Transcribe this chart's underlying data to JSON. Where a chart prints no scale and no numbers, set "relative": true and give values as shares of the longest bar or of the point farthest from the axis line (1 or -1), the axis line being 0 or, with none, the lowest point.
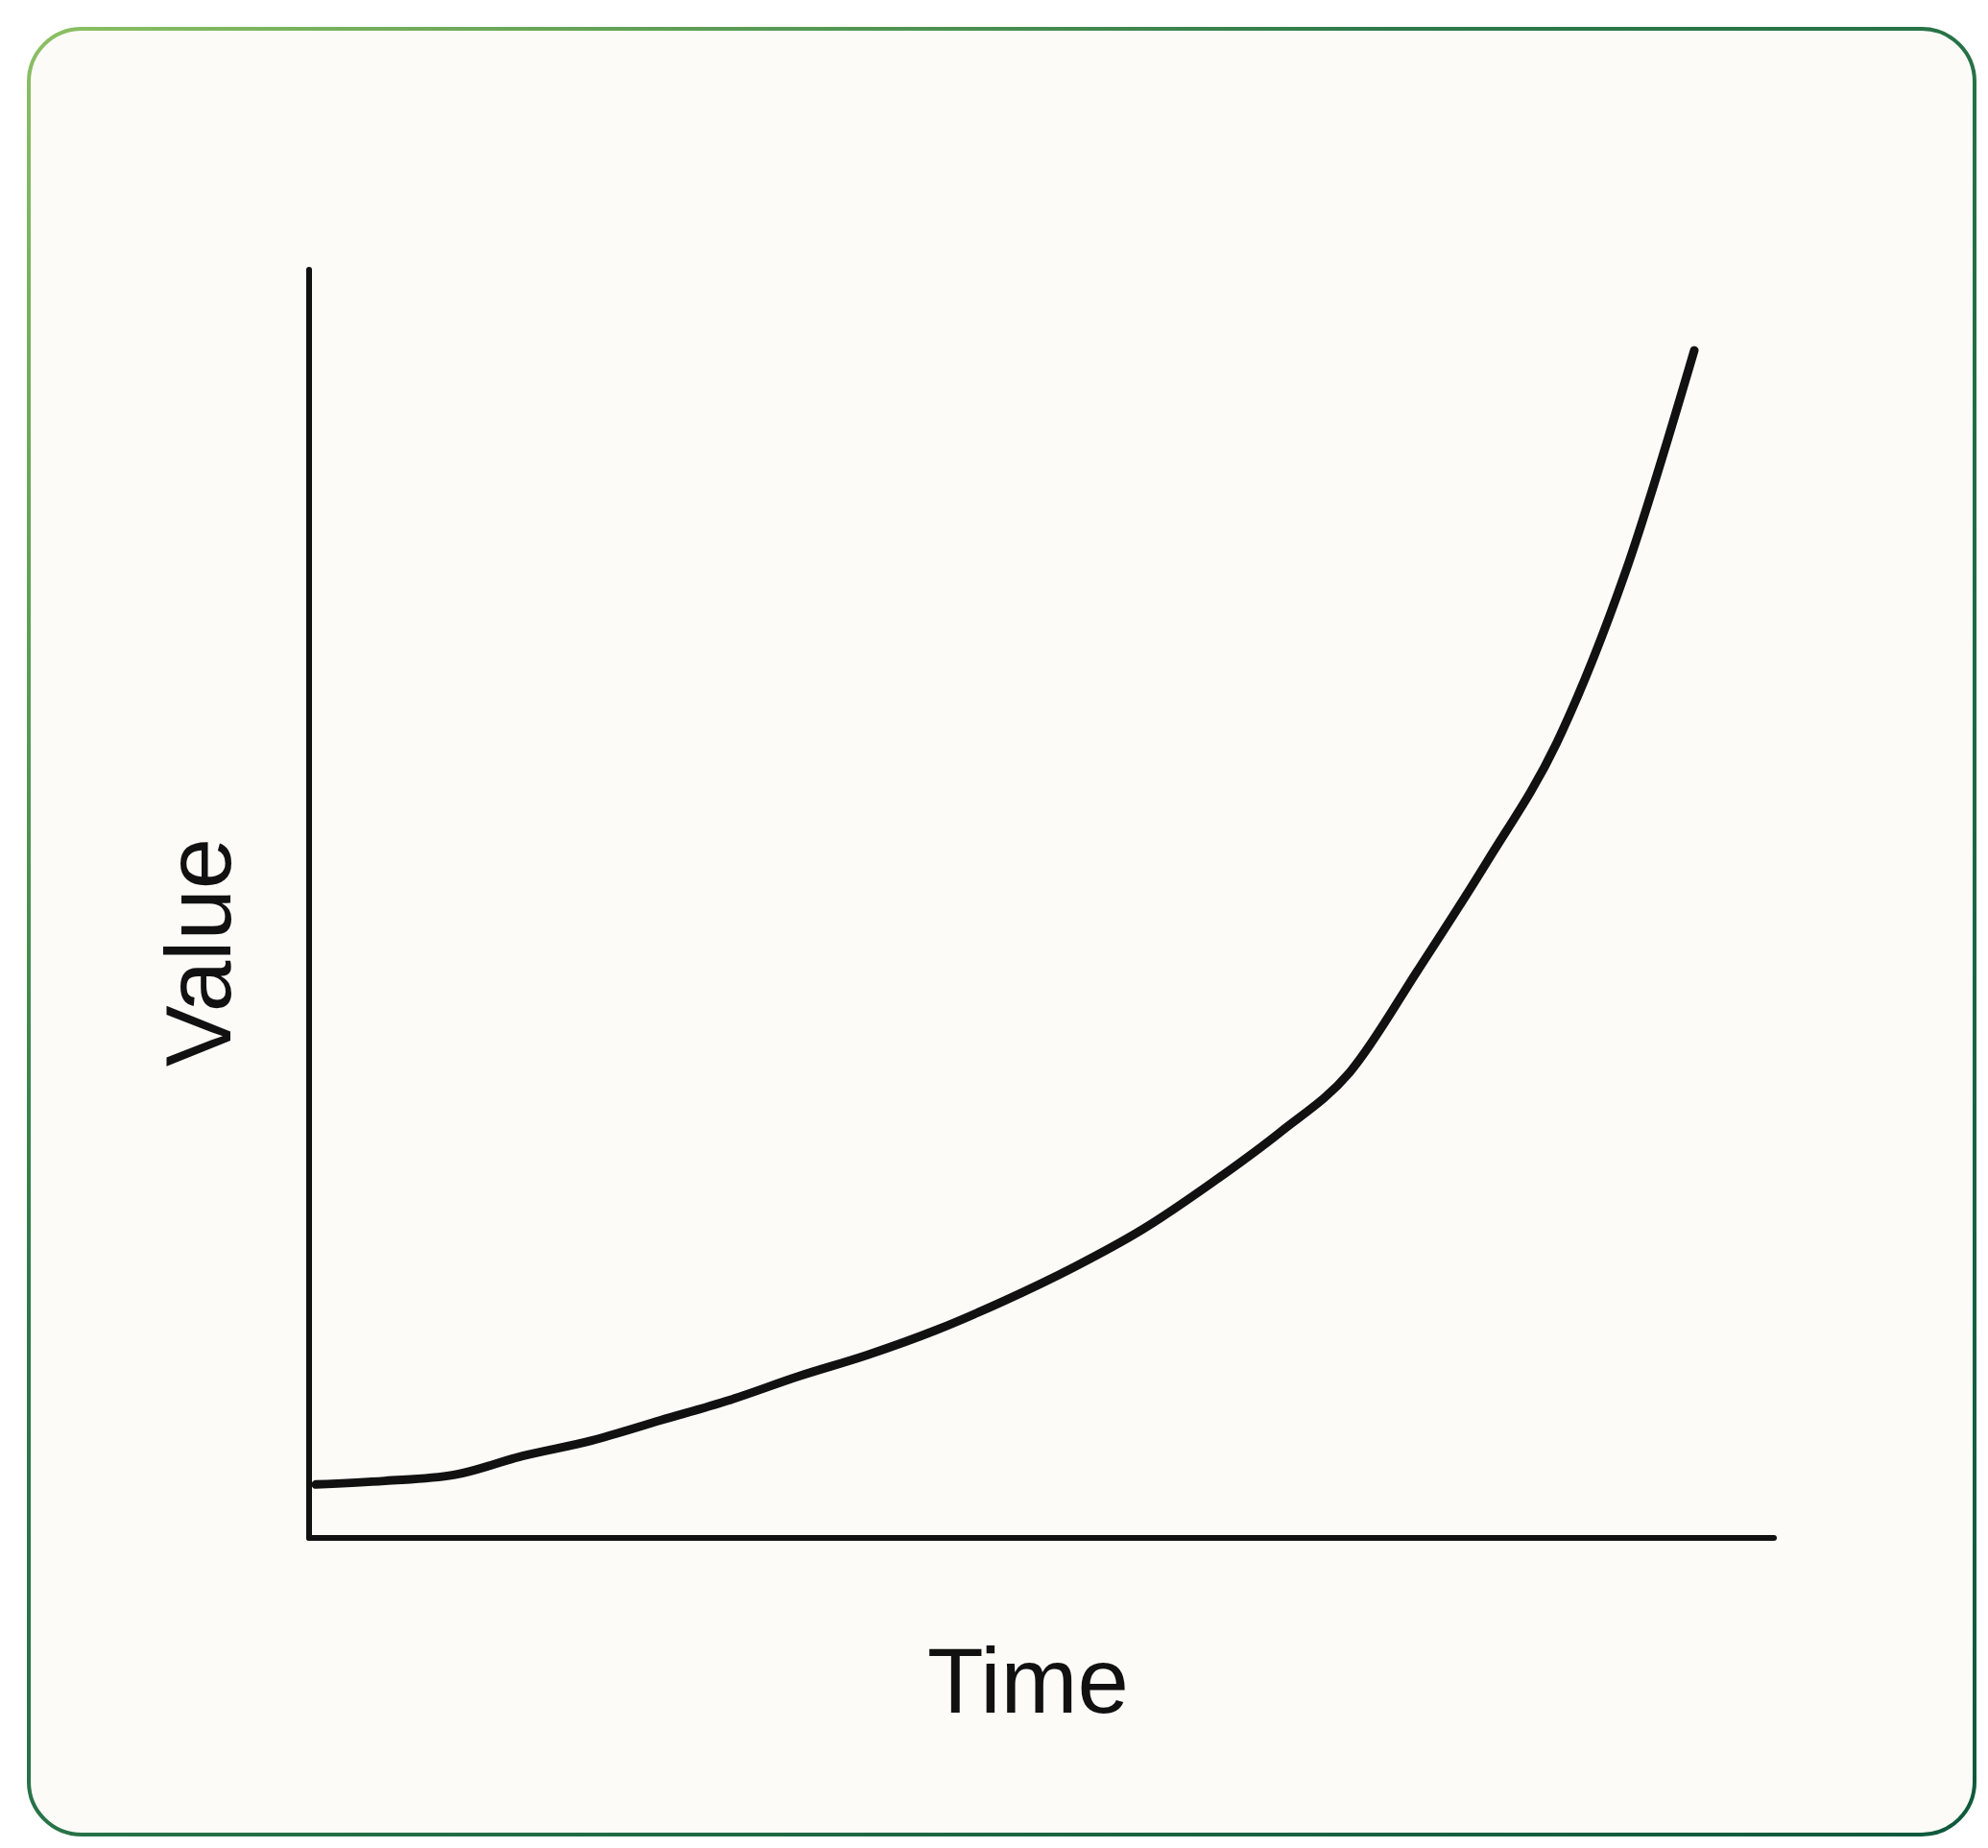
{
  "chart_data": {
    "type": "line",
    "xlabel": "Time",
    "ylabel": "Value",
    "relative": true,
    "color": "#111111",
    "categories": [
      null,
      null,
      null,
      null,
      null,
      null,
      null,
      null,
      null,
      null,
      null,
      null,
      null,
      null,
      null,
      null,
      null,
      null,
      null,
      null,
      null
    ],
    "values": [
      0.045,
      0.048,
      0.053,
      0.069,
      0.082,
      0.099,
      0.116,
      0.136,
      0.154,
      0.175,
      0.2,
      0.228,
      0.26,
      0.299,
      0.342,
      0.392,
      0.479,
      0.57,
      0.669,
      0.813,
      1
    ]
  }
}
